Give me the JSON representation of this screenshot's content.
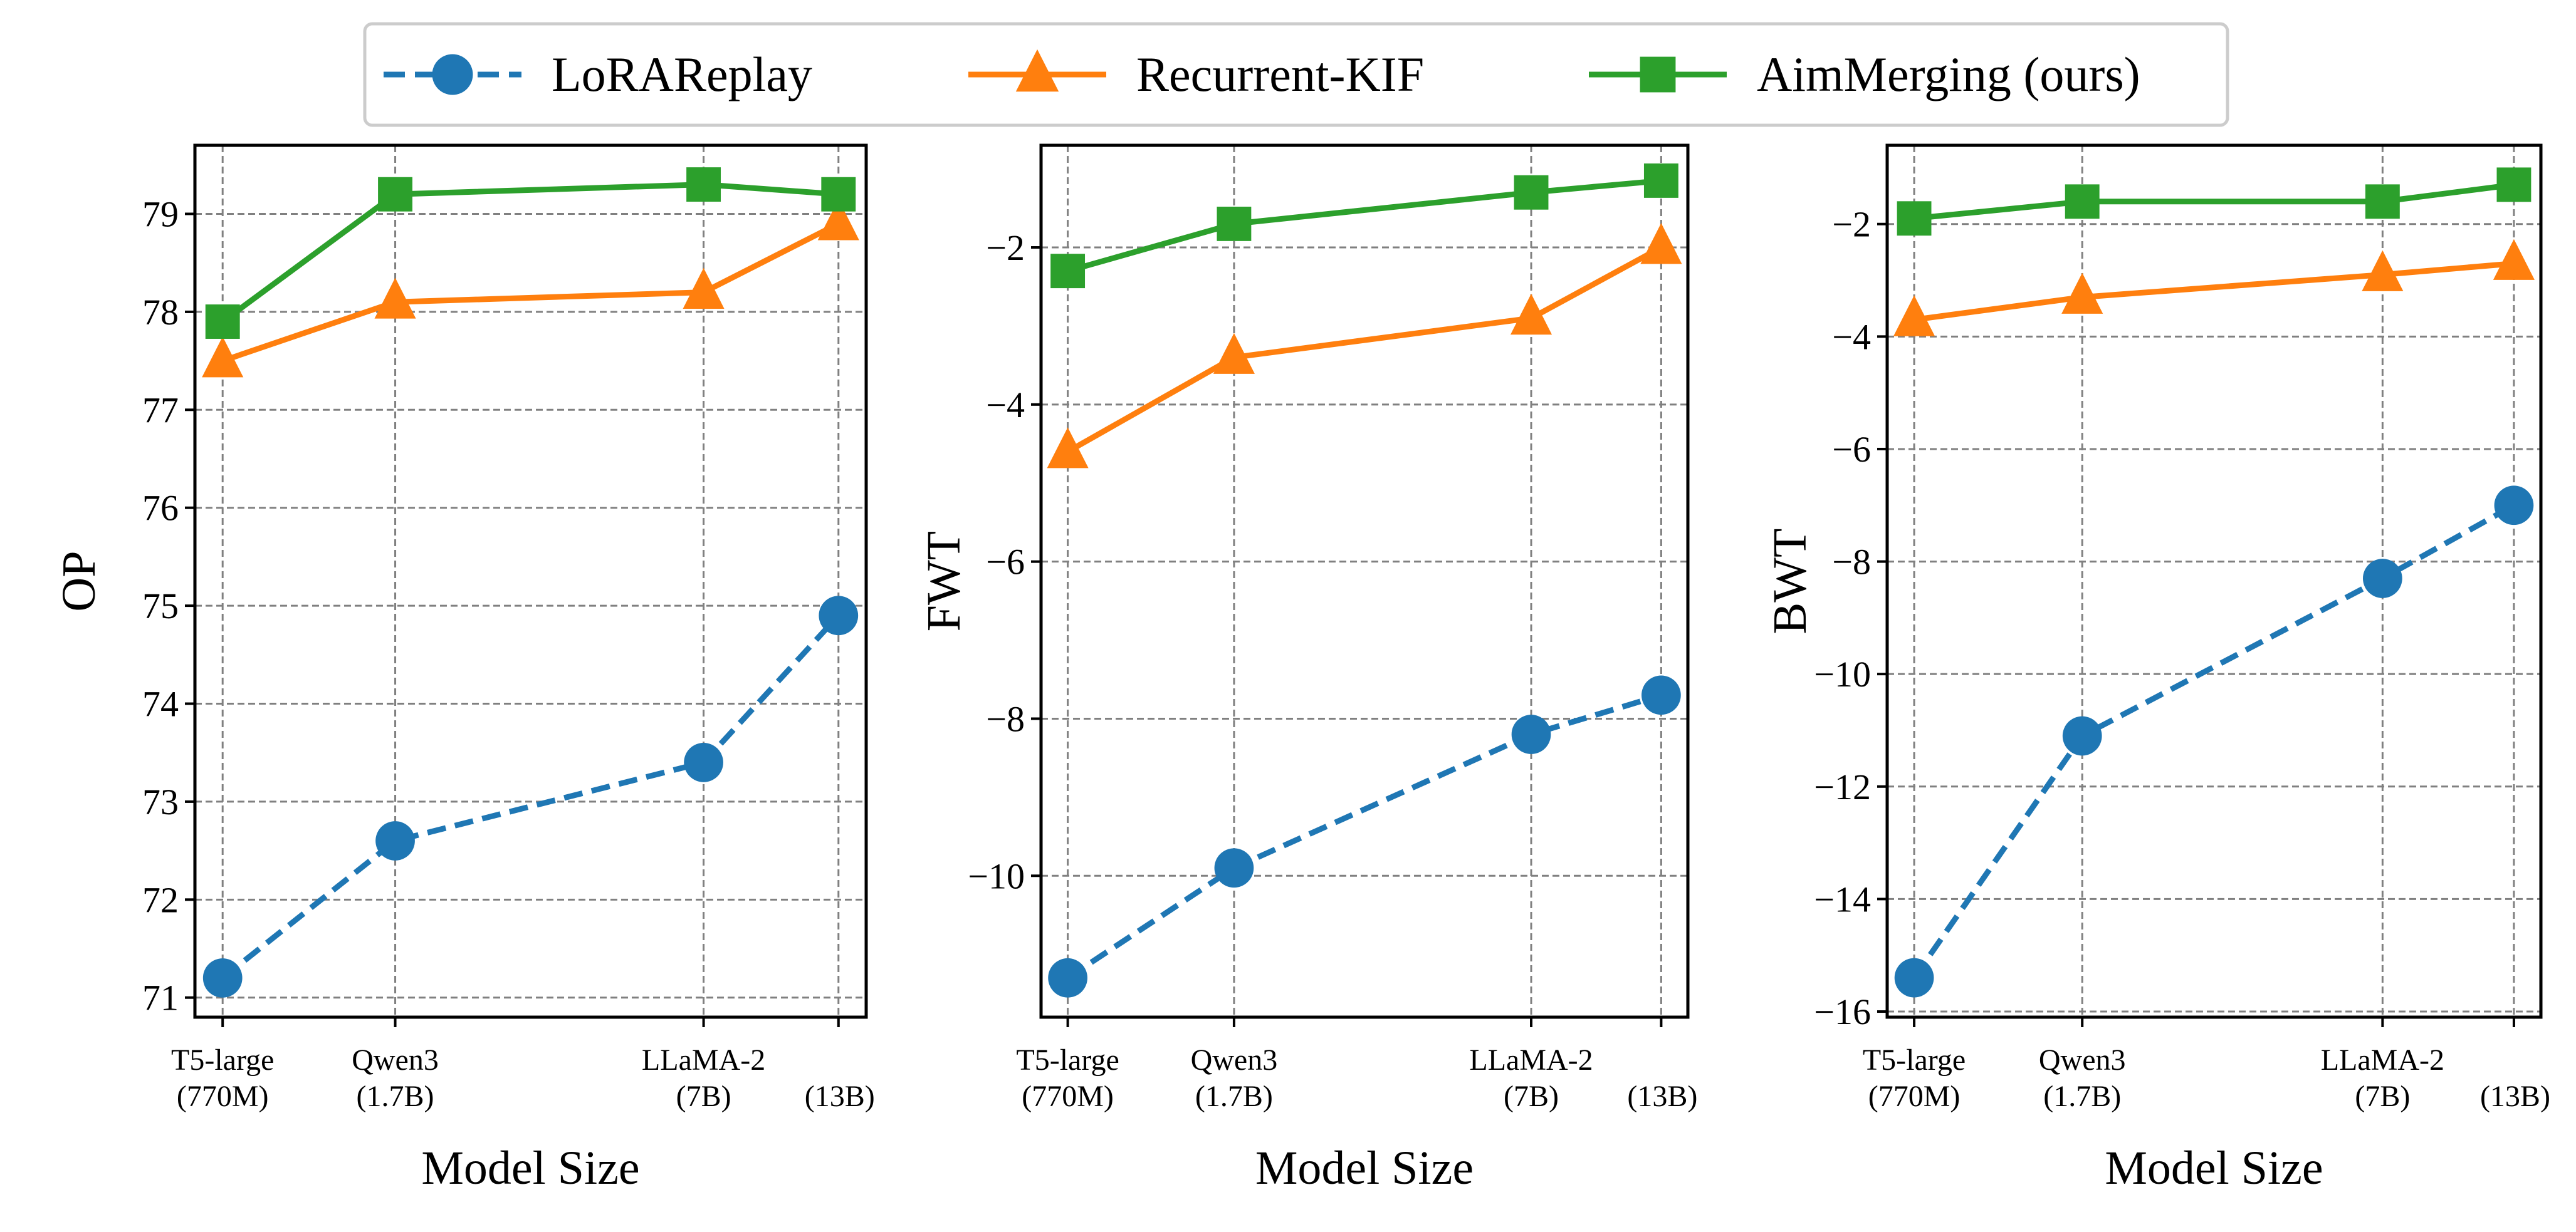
{
  "legend": {
    "placement": "top-center",
    "items": [
      {
        "label": "LoRAReplay",
        "color": "#1f77b4",
        "marker": "circle",
        "dash": true
      },
      {
        "label": "Recurrent-KIF",
        "color": "#ff7f0e",
        "marker": "triangle",
        "dash": false
      },
      {
        "label": "AimMerging (ours)",
        "color": "#2ca02c",
        "marker": "square",
        "dash": false
      }
    ]
  },
  "chart_data": [
    {
      "type": "line",
      "xlabel": "Model Size",
      "ylabel": "OP",
      "x": [
        0.77,
        1.7,
        7,
        13
      ],
      "x_scale": "log",
      "xtick_labels": [
        [
          "T5-large",
          "(770M)"
        ],
        [
          "Qwen3",
          "(1.7B)"
        ],
        [
          "LLaMA-2",
          "(7B)"
        ],
        [
          "",
          "(13B)"
        ]
      ],
      "ylim": [
        70.8,
        79.7
      ],
      "yticks": [
        71,
        72,
        73,
        74,
        75,
        76,
        77,
        78,
        79
      ],
      "grid": true,
      "series": [
        {
          "name": "LoRAReplay",
          "values": [
            71.2,
            72.6,
            73.4,
            74.9
          ]
        },
        {
          "name": "Recurrent-KIF",
          "values": [
            77.5,
            78.1,
            78.2,
            78.9
          ]
        },
        {
          "name": "AimMerging (ours)",
          "values": [
            77.9,
            79.2,
            79.3,
            79.2
          ]
        }
      ]
    },
    {
      "type": "line",
      "xlabel": "Model Size",
      "ylabel": "FWT",
      "x": [
        0.77,
        1.7,
        7,
        13
      ],
      "x_scale": "log",
      "xtick_labels": [
        [
          "T5-large",
          "(770M)"
        ],
        [
          "Qwen3",
          "(1.7B)"
        ],
        [
          "LLaMA-2",
          "(7B)"
        ],
        [
          "",
          "(13B)"
        ]
      ],
      "ylim": [
        -11.8,
        -0.7
      ],
      "yticks": [
        -10,
        -8,
        -6,
        -4,
        -2
      ],
      "grid": true,
      "series": [
        {
          "name": "LoRAReplay",
          "values": [
            -11.3,
            -9.9,
            -8.2,
            -7.7
          ]
        },
        {
          "name": "Recurrent-KIF",
          "values": [
            -4.6,
            -3.4,
            -2.9,
            -2.0
          ]
        },
        {
          "name": "AimMerging (ours)",
          "values": [
            -2.3,
            -1.7,
            -1.3,
            -1.15
          ]
        }
      ]
    },
    {
      "type": "line",
      "xlabel": "Model Size",
      "ylabel": "BWT",
      "x": [
        0.77,
        1.7,
        7,
        13
      ],
      "x_scale": "log",
      "xtick_labels": [
        [
          "T5-large",
          "(770M)"
        ],
        [
          "Qwen3",
          "(1.7B)"
        ],
        [
          "LLaMA-2",
          "(7B)"
        ],
        [
          "",
          "(13B)"
        ]
      ],
      "ylim": [
        -16.1,
        -0.6
      ],
      "yticks": [
        -16,
        -14,
        -12,
        -10,
        -8,
        -6,
        -4,
        -2
      ],
      "grid": true,
      "series": [
        {
          "name": "LoRAReplay",
          "values": [
            -15.4,
            -11.1,
            -8.3,
            -7.0
          ]
        },
        {
          "name": "Recurrent-KIF",
          "values": [
            -3.7,
            -3.3,
            -2.9,
            -2.7
          ]
        },
        {
          "name": "AimMerging (ours)",
          "values": [
            -1.9,
            -1.6,
            -1.6,
            -1.3
          ]
        }
      ]
    }
  ]
}
